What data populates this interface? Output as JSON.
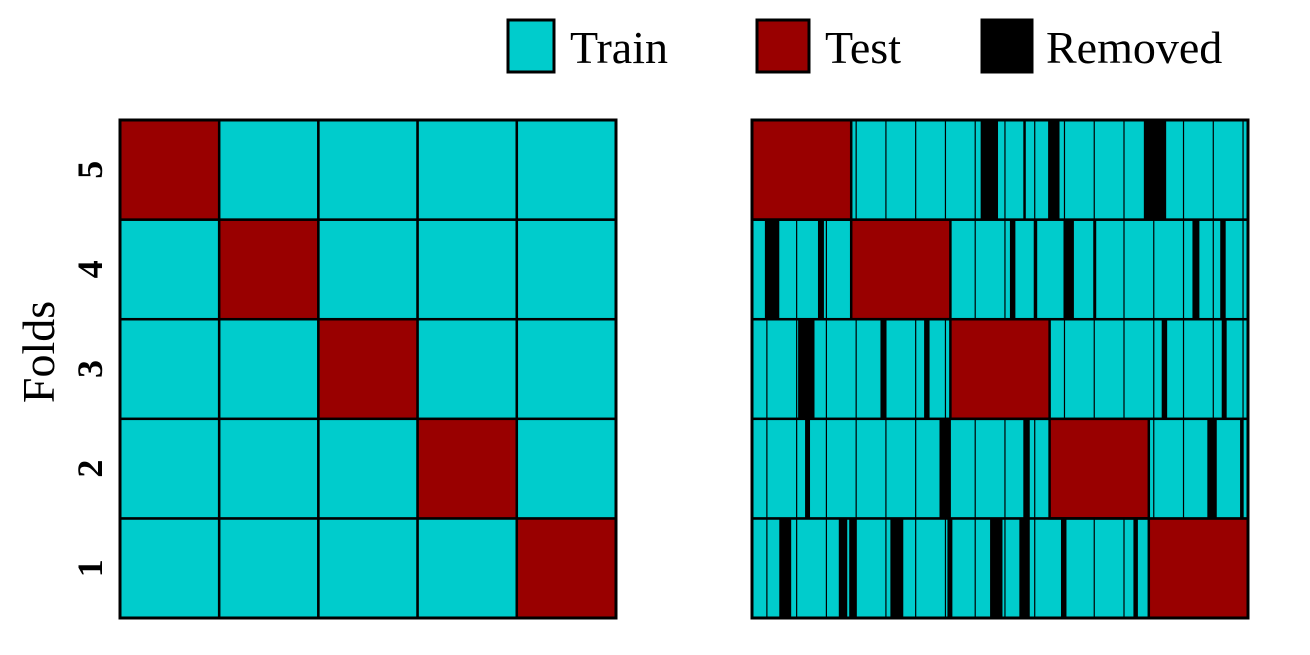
{
  "colors": {
    "train": "#00CCCC",
    "test": "#990000",
    "removed": "#000000"
  },
  "legend": {
    "train": "Train",
    "test": "Test",
    "removed": "Removed"
  },
  "chart_data": [
    {
      "type": "heatmap",
      "name": "standard-kfold",
      "ylabel": "Folds",
      "folds": [
        "1",
        "2",
        "3",
        "4",
        "5"
      ],
      "blocks": 5,
      "test_block_by_fold": {
        "1": 5,
        "2": 4,
        "3": 3,
        "4": 2,
        "5": 1
      },
      "removed": []
    },
    {
      "type": "heatmap",
      "name": "kfold-with-removal",
      "folds": [
        "1",
        "2",
        "3",
        "4",
        "5"
      ],
      "blocks": 5,
      "test_block_by_fold": {
        "1": 5,
        "2": 4,
        "3": 3,
        "4": 2,
        "5": 1
      },
      "train_divider_spacing": 0.06,
      "removed_bars_note": "Removed samples shown as thin black vertical strips (fraction of row width).",
      "removed": {
        "5": [
          [
            0.461,
            0.496
          ],
          [
            0.547,
            0.552
          ],
          [
            0.597,
            0.62
          ],
          [
            0.79,
            0.835
          ]
        ],
        "4": [
          [
            0.026,
            0.055
          ],
          [
            0.133,
            0.145
          ],
          [
            0.52,
            0.531
          ],
          [
            0.568,
            0.575
          ],
          [
            0.628,
            0.649
          ],
          [
            0.688,
            0.694
          ],
          [
            0.888,
            0.902
          ],
          [
            0.944,
            0.955
          ]
        ],
        "3": [
          [
            0.093,
            0.126
          ],
          [
            0.259,
            0.27
          ],
          [
            0.347,
            0.358
          ],
          [
            0.826,
            0.837
          ],
          [
            0.947,
            0.957
          ]
        ],
        "2": [
          [
            0.107,
            0.117
          ],
          [
            0.378,
            0.401
          ],
          [
            0.547,
            0.56
          ],
          [
            0.918,
            0.937
          ],
          [
            0.984,
            0.991
          ]
        ],
        "1": [
          [
            0.055,
            0.079
          ],
          [
            0.175,
            0.192
          ],
          [
            0.196,
            0.211
          ],
          [
            0.279,
            0.305
          ],
          [
            0.394,
            0.404
          ],
          [
            0.48,
            0.505
          ],
          [
            0.539,
            0.56
          ],
          [
            0.623,
            0.634
          ],
          [
            0.769,
            0.778
          ]
        ]
      }
    }
  ]
}
